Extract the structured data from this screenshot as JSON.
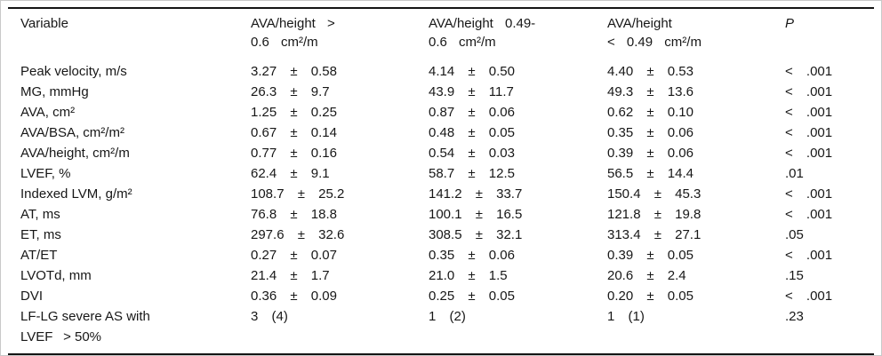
{
  "table": {
    "pm_symbol": "±",
    "columns": {
      "variable": "Variable",
      "group1": "AVA/height >\n0.6 cm²/m",
      "group2": "AVA/height 0.49-\n0.6 cm²/m",
      "group3": "AVA/height\n< 0.49 cm²/m",
      "p": "P"
    },
    "rows": [
      {
        "label": "Peak velocity, m/s",
        "c1": "3.27 ± 0.58",
        "c2": "4.14 ± 0.50",
        "c3": "4.40 ± 0.53",
        "p": "< .001"
      },
      {
        "label": "MG, mmHg",
        "c1": "26.3 ± 9.7",
        "c2": "43.9 ± 11.7",
        "c3": "49.3 ± 13.6",
        "p": "< .001"
      },
      {
        "label": "AVA, cm²",
        "c1": "1.25 ± 0.25",
        "c2": "0.87 ± 0.06",
        "c3": "0.62 ± 0.10",
        "p": "< .001"
      },
      {
        "label": "AVA/BSA, cm²/m²",
        "c1": "0.67 ± 0.14",
        "c2": "0.48 ± 0.05",
        "c3": "0.35 ± 0.06",
        "p": "< .001"
      },
      {
        "label": "AVA/height, cm²/m",
        "c1": "0.77 ± 0.16",
        "c2": "0.54 ± 0.03",
        "c3": "0.39 ± 0.06",
        "p": "< .001"
      },
      {
        "label": "LVEF, %",
        "c1": "62.4 ± 9.1",
        "c2": "58.7 ± 12.5",
        "c3": "56.5 ± 14.4",
        "p": ".01"
      },
      {
        "label": "Indexed LVM, g/m²",
        "c1": "108.7 ± 25.2",
        "c2": "141.2 ± 33.7",
        "c3": "150.4 ± 45.3",
        "p": "< .001"
      },
      {
        "label": "AT, ms",
        "c1": "76.8 ± 18.8",
        "c2": "100.1 ± 16.5",
        "c3": "121.8 ± 19.8",
        "p": "< .001"
      },
      {
        "label": "ET, ms",
        "c1": "297.6 ± 32.6",
        "c2": "308.5 ± 32.1",
        "c3": "313.4 ± 27.1",
        "p": ".05"
      },
      {
        "label": "AT/ET",
        "c1": "0.27 ± 0.07",
        "c2": "0.35 ± 0.06",
        "c3": "0.39 ± 0.05",
        "p": "< .001"
      },
      {
        "label": "LVOTd, mm",
        "c1": "21.4 ± 1.7",
        "c2": "21.0 ± 1.5",
        "c3": "20.6 ± 2.4",
        "p": ".15"
      },
      {
        "label": "DVI",
        "c1": "0.36 ± 0.09",
        "c2": "0.25 ± 0.05",
        "c3": "0.20 ± 0.05",
        "p": "< .001"
      },
      {
        "label": "LF-LG severe AS with\nLVEF  > 50%",
        "c1": "3 (4)",
        "c2": "1 (2)",
        "c3": "1 (1)",
        "p": ".23"
      }
    ]
  }
}
